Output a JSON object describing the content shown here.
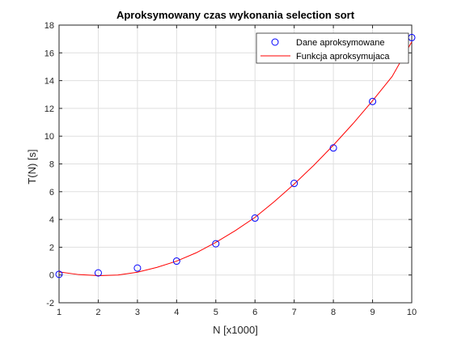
{
  "colors": {
    "background": "#ffffff",
    "grid": "#dfdfdf",
    "axis": "#262626",
    "marker": "#0000ff",
    "fit_line": "#ff0000"
  },
  "chart_data": {
    "type": "scatter",
    "title": "Aproksymowany czas wykonania selection sort",
    "xlabel": "N [x1000]",
    "ylabel": "T(N) [s]",
    "xlim": [
      1,
      10
    ],
    "ylim": [
      -2,
      18
    ],
    "xticks": [
      1,
      2,
      3,
      4,
      5,
      6,
      7,
      8,
      9,
      10
    ],
    "yticks": [
      -2,
      0,
      2,
      4,
      6,
      8,
      10,
      12,
      14,
      16,
      18
    ],
    "grid": true,
    "legend_position": "top-right",
    "series": [
      {
        "name": "Dane aproksymowane",
        "kind": "markers",
        "marker": "circle",
        "x": [
          1,
          2,
          3,
          4,
          5,
          6,
          7,
          8,
          9,
          10
        ],
        "y": [
          0.05,
          0.15,
          0.5,
          1.0,
          2.25,
          4.1,
          6.6,
          9.15,
          12.5,
          17.1
        ]
      },
      {
        "name": "Funkcja aproksymujaca",
        "kind": "line",
        "x": [
          1,
          1.5,
          2,
          2.5,
          3,
          3.5,
          4,
          4.5,
          5,
          5.5,
          6,
          6.5,
          7,
          7.5,
          8,
          8.5,
          9,
          9.5,
          10
        ],
        "y": [
          0.22,
          0.03,
          -0.05,
          0.0,
          0.2,
          0.55,
          1.0,
          1.6,
          2.35,
          3.2,
          4.15,
          5.3,
          6.55,
          7.9,
          9.35,
          10.9,
          12.55,
          14.3,
          16.8
        ]
      }
    ]
  }
}
